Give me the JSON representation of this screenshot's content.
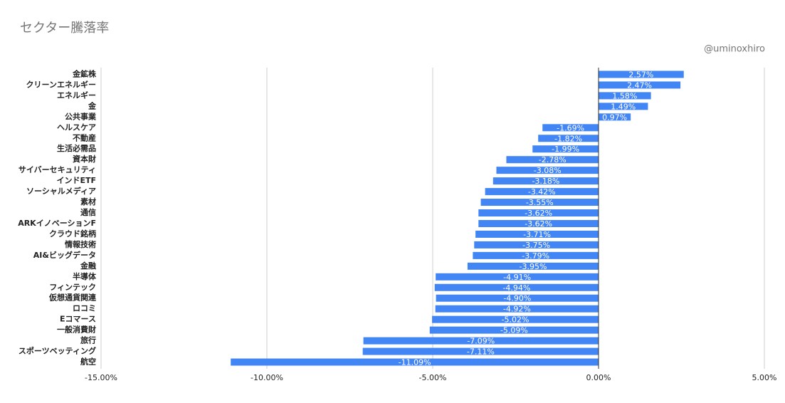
{
  "chart_data": {
    "type": "bar",
    "orientation": "horizontal",
    "title": "セクター騰落率",
    "watermark": "@uminoxhiro",
    "categories": [
      "金鉱株",
      "クリーンエネルギー",
      "エネルギー",
      "金",
      "公共事業",
      "ヘルスケア",
      "不動産",
      "生活必需品",
      "資本財",
      "サイバーセキュリティ",
      "インドETF",
      "ソーシャルメディア",
      "素材",
      "通信",
      "ARKイノベーションF",
      "クラウド銘柄",
      "情報技術",
      "AI&ビッグデータ",
      "金融",
      "半導体",
      "フィンテック",
      "仮想通貨関連",
      "ロコミ",
      "Eコマース",
      "一般消費財",
      "旅行",
      "スポーツベッティング",
      "航空"
    ],
    "values": [
      2.57,
      2.47,
      1.58,
      1.49,
      0.97,
      -1.69,
      -1.82,
      -1.99,
      -2.78,
      -3.08,
      -3.18,
      -3.42,
      -3.55,
      -3.62,
      -3.62,
      -3.71,
      -3.75,
      -3.79,
      -3.95,
      -4.91,
      -4.94,
      -4.9,
      -4.92,
      -5.02,
      -5.09,
      -7.09,
      -7.11,
      -11.09
    ],
    "value_labels": [
      "2.57%",
      "2.47%",
      "1.58%",
      "1.49%",
      "0.97%",
      "-1.69%",
      "-1.82%",
      "-1.99%",
      "-2.78%",
      "-3.08%",
      "-3.18%",
      "-3.42%",
      "-3.55%",
      "-3.62%",
      "-3.62%",
      "-3.71%",
      "-3.75%",
      "-3.79%",
      "-3.95%",
      "-4.91%",
      "-4.94%",
      "-4.90%",
      "-4.92%",
      "-5.02%",
      "-5.09%",
      "-7.09%",
      "-7.11%",
      "-11.09%"
    ],
    "color": "#4285f4",
    "xlim": [
      -15,
      5
    ],
    "xticks": [
      {
        "value": -15,
        "label": "-15.00%"
      },
      {
        "value": -10,
        "label": "-10.00%"
      },
      {
        "value": -5,
        "label": "-5.00%"
      },
      {
        "value": 0,
        "label": "0.00%"
      },
      {
        "value": 5,
        "label": "5.00%"
      }
    ],
    "grid": true
  }
}
